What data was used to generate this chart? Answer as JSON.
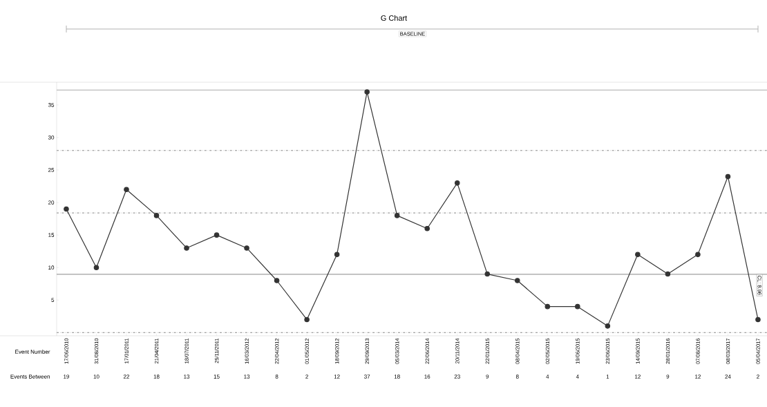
{
  "chart_data": {
    "type": "line",
    "title": "G Chart",
    "categories": [
      "17/06/2010",
      "31/08/2010",
      "17/01/2011",
      "21/04/2011",
      "18/07/2011",
      "25/11/2011",
      "16/03/2012",
      "22/04/2012",
      "01/05/2012",
      "18/09/2012",
      "29/09/2013",
      "05/03/2014",
      "22/06/2014",
      "20/11/2014",
      "22/01/2015",
      "08/04/2015",
      "02/05/2015",
      "19/06/2015",
      "23/06/2015",
      "14/09/2015",
      "28/01/2016",
      "07/08/2016",
      "08/03/2017",
      "05/04/2017"
    ],
    "series": [
      {
        "color": "#333333",
        "values": [
          19,
          10,
          22,
          18,
          13,
          15,
          13,
          8,
          2,
          12,
          37,
          18,
          16,
          23,
          9,
          8,
          4,
          4,
          1,
          12,
          9,
          12,
          24,
          2
        ]
      }
    ],
    "ylim": [
      -0.5,
      38.5
    ],
    "yticks": [
      5,
      10,
      15,
      20,
      25,
      30,
      35
    ],
    "marker": "circle",
    "line_style": "solid",
    "data_labels": true,
    "ref_lines": [
      {
        "axis": "y",
        "value": 37.3,
        "color": "#aaaaaa",
        "line_style": "solid"
      },
      {
        "axis": "y",
        "value": 28,
        "color": "#888888",
        "line_style": "dashed"
      },
      {
        "axis": "y",
        "value": 18.4,
        "color": "#888888",
        "line_style": "dashed"
      },
      {
        "axis": "y",
        "value": 8.96,
        "label": "CL: 8.96",
        "color": "#888888",
        "line_style": "solid"
      },
      {
        "axis": "y",
        "value": 0,
        "color": "#888888",
        "line_style": "dashed"
      }
    ],
    "annotations": [
      "BASELINE",
      "Event Number",
      "Events Between"
    ]
  }
}
